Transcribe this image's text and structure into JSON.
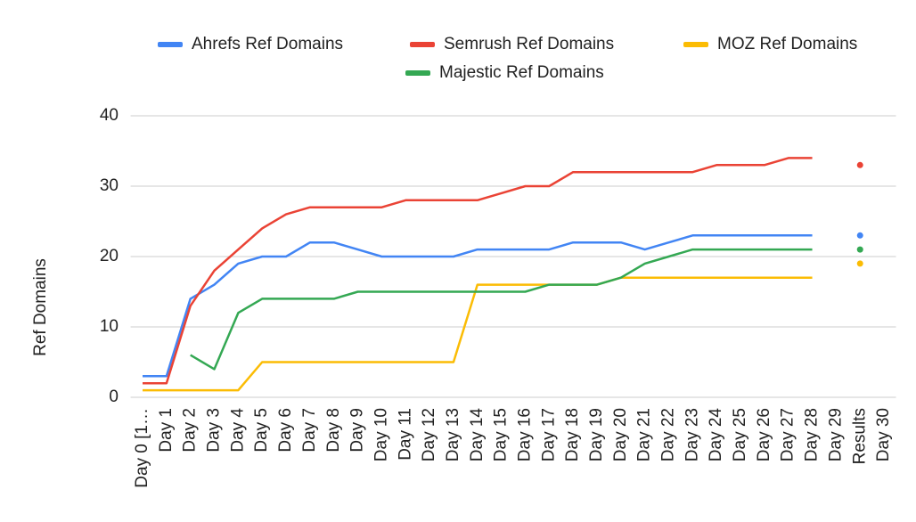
{
  "chart_data": {
    "type": "line",
    "y_label": "Ref Domains",
    "categories": [
      "Day 0 [1…",
      "Day 1",
      "Day 2",
      "Day 3",
      "Day 4",
      "Day 5",
      "Day 6",
      "Day 7",
      "Day 8",
      "Day 9",
      "Day 10",
      "Day 11",
      "Day 12",
      "Day 13",
      "Day 14",
      "Day 15",
      "Day 16",
      "Day 17",
      "Day 18",
      "Day 19",
      "Day 20",
      "Day 21",
      "Day 22",
      "Day 23",
      "Day 24",
      "Day 25",
      "Day 26",
      "Day 27",
      "Day 28",
      "Day 29",
      "Results",
      "Day 30"
    ],
    "series": [
      {
        "name": "Ahrefs Ref Domains",
        "color": "#4285f4",
        "values": [
          3,
          3,
          14,
          16,
          19,
          20,
          20,
          22,
          22,
          21,
          20,
          20,
          20,
          20,
          21,
          21,
          21,
          21,
          22,
          22,
          22,
          21,
          22,
          23,
          23,
          23,
          23,
          23,
          23,
          null,
          23,
          null
        ]
      },
      {
        "name": "Semrush Ref Domains",
        "color": "#ea4335",
        "values": [
          2,
          2,
          13,
          18,
          21,
          24,
          26,
          27,
          27,
          27,
          27,
          28,
          28,
          28,
          28,
          29,
          30,
          30,
          32,
          32,
          32,
          32,
          32,
          32,
          33,
          33,
          33,
          34,
          34,
          null,
          33,
          null
        ]
      },
      {
        "name": "MOZ Ref Domains",
        "color": "#fbbc04",
        "values": [
          1,
          1,
          1,
          1,
          1,
          5,
          5,
          5,
          5,
          5,
          5,
          5,
          5,
          5,
          16,
          16,
          16,
          16,
          16,
          16,
          17,
          17,
          17,
          17,
          17,
          17,
          17,
          17,
          17,
          null,
          19,
          null
        ]
      },
      {
        "name": "Majestic Ref Domains",
        "color": "#34a853",
        "values": [
          null,
          null,
          6,
          4,
          12,
          14,
          14,
          14,
          14,
          15,
          15,
          15,
          15,
          15,
          15,
          15,
          15,
          16,
          16,
          16,
          17,
          19,
          20,
          21,
          21,
          21,
          21,
          21,
          21,
          null,
          21,
          null
        ]
      }
    ],
    "ylim": [
      0,
      40
    ],
    "yticks": [
      0,
      10,
      20,
      30,
      40
    ],
    "grid": true,
    "legend": "top"
  }
}
